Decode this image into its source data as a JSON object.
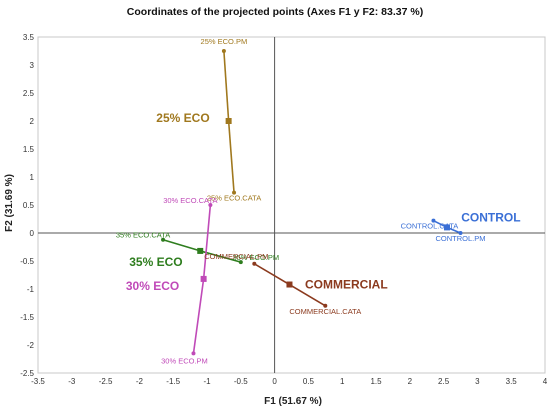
{
  "chart_data": {
    "type": "scatter",
    "title": "Coordinates of the projected points  (Axes F1 y F2: 83.37 %)",
    "xlabel": "F1 (51.67 %)",
    "ylabel": "F2 (31.69 %)",
    "xlim": [
      -3.5,
      4
    ],
    "ylim": [
      -2.5,
      3.5
    ],
    "xticks": [
      "-3.5",
      "-3",
      "-2.5",
      "-2",
      "-1.5",
      "-1",
      "-0.5",
      "0",
      "0.5",
      "1",
      "1.5",
      "2",
      "2.5",
      "3",
      "3.5",
      "4"
    ],
    "yticks": [
      "3.5",
      "3",
      "2.5",
      "2",
      "1.5",
      "1",
      "0.5",
      "0",
      "-0.5",
      "-1",
      "-1.5",
      "-2",
      "-2.5"
    ],
    "grid": false,
    "groups": [
      {
        "name": "25% ECO",
        "color": "#a0781e",
        "centroid": {
          "x": -0.68,
          "y": 2.0
        },
        "points": [
          {
            "label": "25% ECO.PM",
            "x": -0.75,
            "y": 3.25
          },
          {
            "label": "25% ECO.CATA",
            "x": -0.6,
            "y": 0.72
          }
        ]
      },
      {
        "name": "CONTROL",
        "color": "#3a6fd6",
        "centroid": {
          "x": 2.55,
          "y": 0.1
        },
        "points": [
          {
            "label": "CONTROL.CATA",
            "x": 2.35,
            "y": 0.22
          },
          {
            "label": "CONTROL.PM",
            "x": 2.75,
            "y": 0.0
          }
        ]
      },
      {
        "name": "35% ECO",
        "color": "#2e7d1e",
        "centroid": {
          "x": -1.1,
          "y": -0.32
        },
        "points": [
          {
            "label": "35% ECO.CATA",
            "x": -1.65,
            "y": -0.12
          },
          {
            "label": "35% ECO.PM",
            "x": -0.5,
            "y": -0.52
          }
        ]
      },
      {
        "name": "30% ECO",
        "color": "#c04ab8",
        "centroid": {
          "x": -1.05,
          "y": -0.82
        },
        "points": [
          {
            "label": "30% ECO.CATA",
            "x": -0.95,
            "y": 0.5
          },
          {
            "label": "30% ECO.PM",
            "x": -1.2,
            "y": -2.15
          }
        ]
      },
      {
        "name": "COMMERCIAL",
        "color": "#8b3a1e",
        "centroid": {
          "x": 0.22,
          "y": -0.92
        },
        "points": [
          {
            "label": "COMMERCIAL.PM",
            "x": -0.3,
            "y": -0.55
          },
          {
            "label": "COMMERCIAL.CATA",
            "x": 0.75,
            "y": -1.3
          }
        ]
      }
    ]
  }
}
